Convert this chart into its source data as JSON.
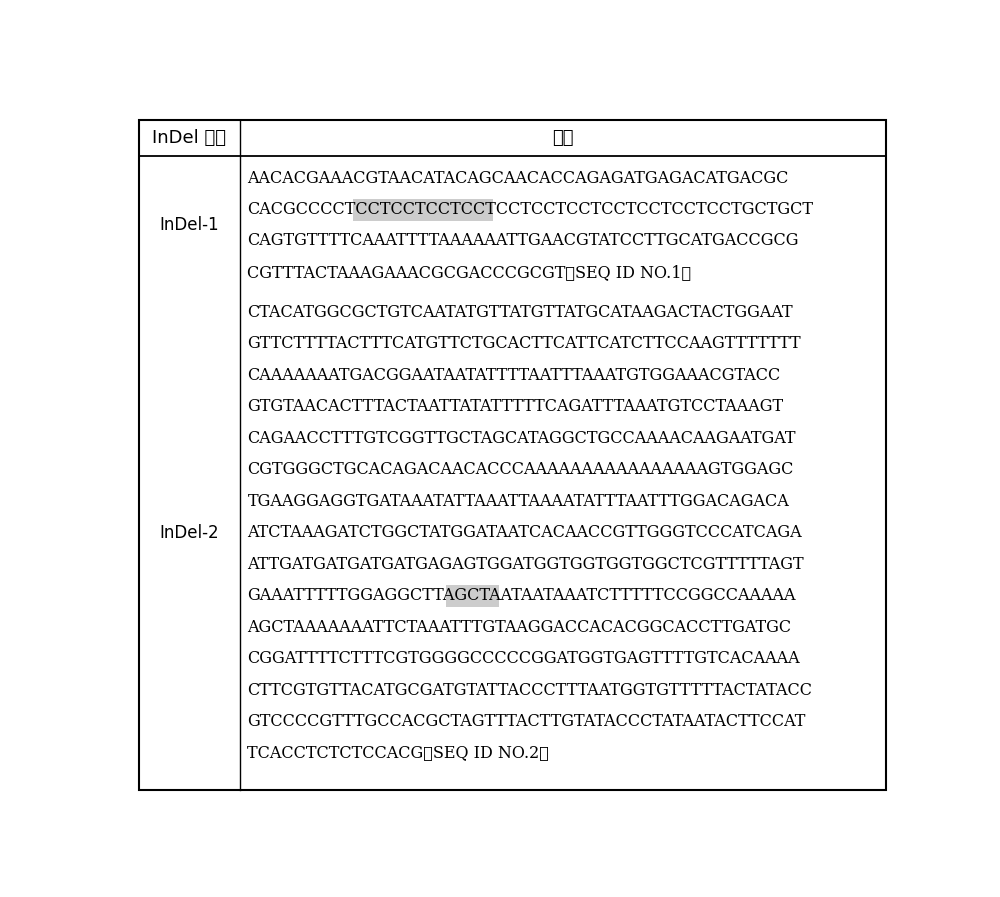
{
  "col1_header": "InDel 标记",
  "col2_header": "序列",
  "rows": [
    {
      "label": "InDel-1",
      "lines": [
        {
          "text": "AACACGAAACGTAACATACAGCAACACCAGAGATGAGACATGACGC",
          "pre": null,
          "highlight": null,
          "post": null
        },
        {
          "text": "CACGCCCCTCCTCCTCCTCCTCCTCCTCCTCCTCCTCCTCCTGCTGCT",
          "pre": "CACGCCCCTCCTCCTCCT",
          "highlight": "CCTCCTCCTCCTCCTCCTCCTCCT",
          "post": "GCTGCT"
        },
        {
          "text": "CAGTGTTTTCAAATTTTAAAAAATTGAACGTATCCTTGCATGACCGCG",
          "pre": null,
          "highlight": null,
          "post": null
        },
        {
          "text": "CGTTTACTAAAGAAACGCGACCCGCGT（SEQ ID NO.1）",
          "pre": null,
          "highlight": null,
          "post": null
        }
      ]
    },
    {
      "label": "InDel-2",
      "lines": [
        {
          "text": "CTACATGGCGCTGTCAATATGTTATGTTATGCATAAGACTACTGGAAT",
          "pre": null,
          "highlight": null,
          "post": null
        },
        {
          "text": "GTTCTTTTACTTTCATGTTCTGCACTTCATTCATCTTCCAAGTTTTTTT",
          "pre": null,
          "highlight": null,
          "post": null
        },
        {
          "text": "CAAAAAAATGACGGAATAATATTTTAATTTAAATGTGGAAACGTACC",
          "pre": null,
          "highlight": null,
          "post": null
        },
        {
          "text": "GTGTAACACTTTACTAATTATATTTTTCAGATTTAAATGTCCTAAAGT",
          "pre": null,
          "highlight": null,
          "post": null
        },
        {
          "text": "CAGAACCTTTGTCGGTTGCTAGCATAGGCTGCCAAAACAAGAATGAT",
          "pre": null,
          "highlight": null,
          "post": null
        },
        {
          "text": "CGTGGGCTGCACAGACAACACCCAAAAAAAAAAAAAAAAGTGGAGC",
          "pre": null,
          "highlight": null,
          "post": null
        },
        {
          "text": "TGAAGGAGGTGATAAATATTAAATTAAAATATTTAATTTGGACAGACA",
          "pre": null,
          "highlight": null,
          "post": null
        },
        {
          "text": "ATCTAAAGATCTGGCTATGGATAATCACAACCGTTGGGTCCCATCAGA",
          "pre": null,
          "highlight": null,
          "post": null
        },
        {
          "text": "ATTGATGATGATGATGAGAGTGGATGGTGGTGGTGGCTCGTTTTTAGT",
          "pre": null,
          "highlight": null,
          "post": null
        },
        {
          "text": "GAAATTTTTGGAGGCTTAGCTAATAATAAATCTTTTTCCGGCCAAAAA",
          "pre": "GAAATTTTTGGAGGCTTAGCTAATAATAAATCTT",
          "highlight": "TTTCCGGCC",
          "post": "AAAAA"
        },
        {
          "text": "AGCTAAAAAAATTCTAAATTTGTAAGGACCACACGGCACCTTGATGC",
          "pre": null,
          "highlight": null,
          "post": null
        },
        {
          "text": "CGGATTTTCTTTCGTGGGGCCCCCGGATGGTGAGTTTTGTCACAAAA",
          "pre": null,
          "highlight": null,
          "post": null
        },
        {
          "text": "CTTCGTGTTACATGCGATGTATTACCCTTTAATGGTGTTTTTACTATACC",
          "pre": null,
          "highlight": null,
          "post": null
        },
        {
          "text": "GTCCCCGTTTGCCACGCTAGTTTACTTGTATACCCTATAATACTTCCAT",
          "pre": null,
          "highlight": null,
          "post": null
        },
        {
          "text": "TCACCTCTCTCCACG（SEQ ID NO.2）",
          "pre": null,
          "highlight": null,
          "post": null
        }
      ]
    }
  ],
  "bg_color": "#ffffff",
  "highlight_color": "#cccccc",
  "text_color": "#000000",
  "seq_fontsize": 11.5,
  "header_fontsize": 13,
  "label_fontsize": 12,
  "fig_width": 10.0,
  "fig_height": 8.97
}
